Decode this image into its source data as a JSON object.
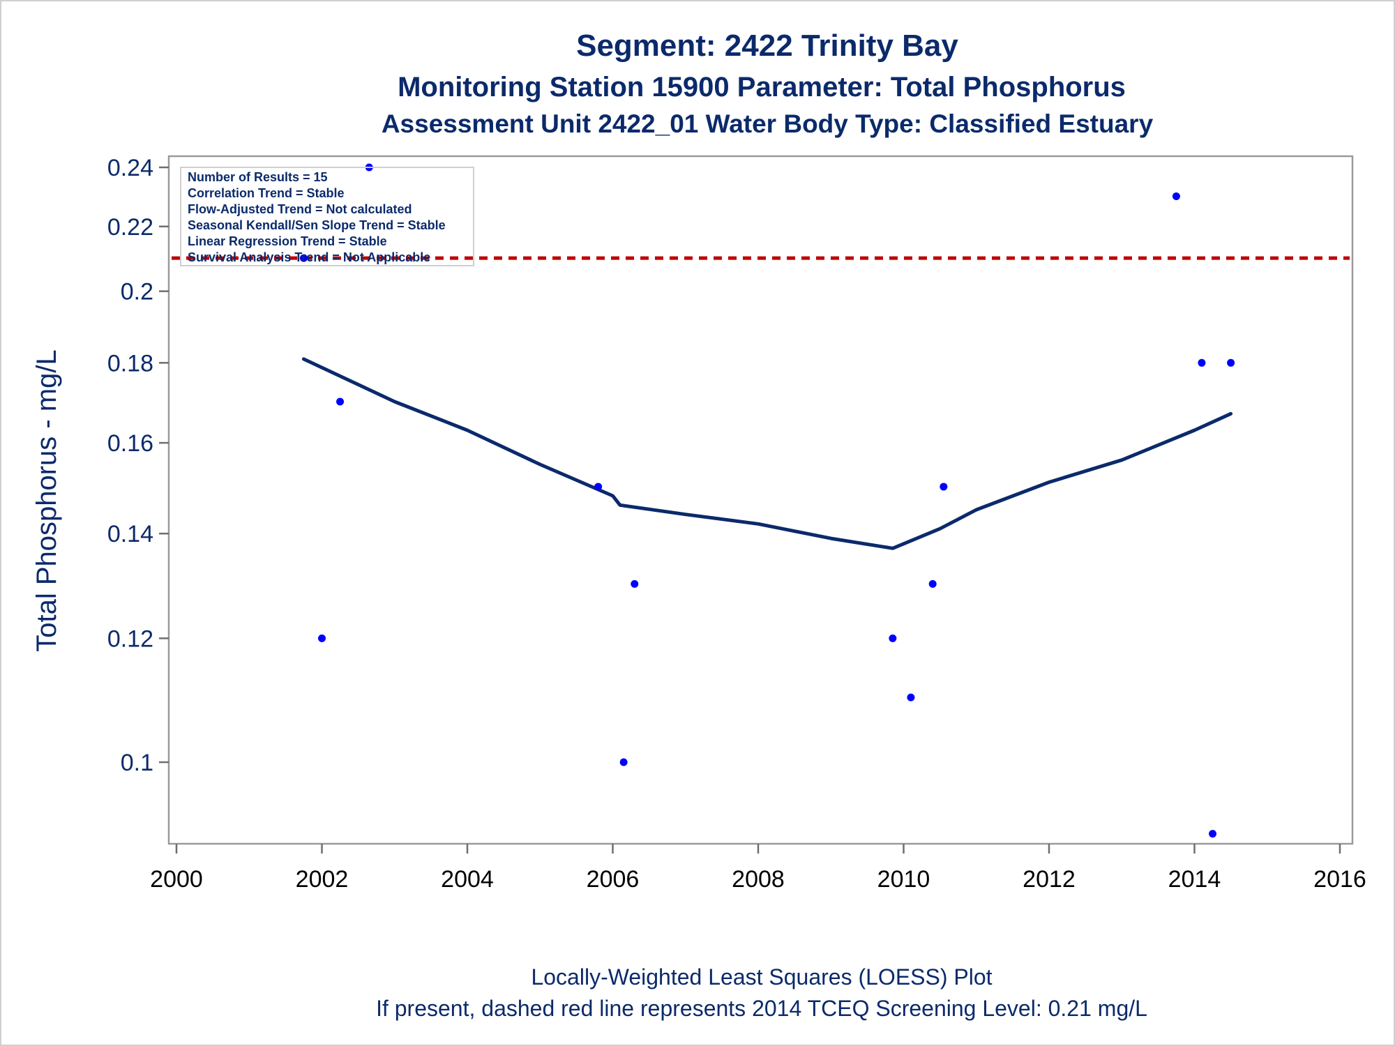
{
  "chart_data": {
    "type": "scatter",
    "title": "Segment: 2422  Trinity Bay",
    "subtitle": "Monitoring Station 15900 Parameter: Total Phosphorus",
    "subtitle2": "Assessment Unit 2422_01   Water Body Type: Classified Estuary",
    "xlabel": "",
    "ylabel": "Total Phosphorus - mg/L",
    "y_scale": "log",
    "xlim": [
      2000,
      2016
    ],
    "ylim": [
      0.089,
      0.243
    ],
    "x_ticks": [
      2000,
      2002,
      2004,
      2006,
      2008,
      2010,
      2012,
      2014,
      2016
    ],
    "x_tick_labels": [
      "2000",
      "2002",
      "2004",
      "2006",
      "2008",
      "2010",
      "2012",
      "2014",
      "2016"
    ],
    "y_ticks": [
      0.1,
      0.12,
      0.14,
      0.16,
      0.18,
      0.2,
      0.22,
      0.24
    ],
    "y_tick_labels": [
      "0.1",
      "0.12",
      "0.14",
      "0.16",
      "0.18",
      "0.2",
      "0.22",
      "0.24"
    ],
    "grid": false,
    "points": {
      "x": [
        2001.75,
        2002.0,
        2002.25,
        2002.65,
        2005.8,
        2006.15,
        2006.3,
        2009.85,
        2010.1,
        2010.4,
        2010.55,
        2013.75,
        2014.1,
        2014.25,
        2014.5
      ],
      "y": [
        0.21,
        0.12,
        0.17,
        0.24,
        0.15,
        0.1,
        0.13,
        0.12,
        0.11,
        0.13,
        0.15,
        0.23,
        0.18,
        0.09,
        0.18
      ],
      "color": "#0000ff"
    },
    "loess": {
      "x": [
        2001.75,
        2003,
        2004,
        2005,
        2006,
        2006.1,
        2007,
        2008,
        2009,
        2009.85,
        2010.5,
        2011,
        2012,
        2013,
        2014,
        2014.5
      ],
      "y": [
        0.181,
        0.17,
        0.163,
        0.155,
        0.148,
        0.146,
        0.144,
        0.142,
        0.139,
        0.137,
        0.141,
        0.145,
        0.151,
        0.156,
        0.163,
        0.167
      ],
      "color": "#0b2a6b"
    },
    "reference_line": {
      "y": 0.21,
      "color": "#c00000",
      "style": "dashed"
    },
    "annotation_box": [
      "Number of Results = 15",
      "Correlation Trend = Stable",
      "Flow-Adjusted Trend = Not calculated",
      "Seasonal Kendall/Sen Slope Trend = Stable",
      "Linear Regression Trend = Stable",
      "Survival Analysis Trend = Not Applicable"
    ],
    "legend": "none",
    "footnotes": [
      "Locally-Weighted Least Squares (LOESS) Plot",
      "If present, dashed red line represents 2014 TCEQ Screening Level: 0.21 mg/L"
    ]
  }
}
